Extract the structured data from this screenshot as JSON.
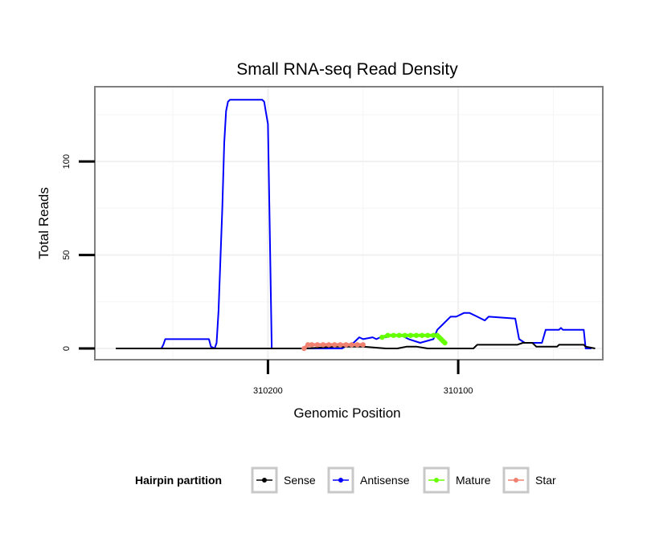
{
  "chart_data": {
    "type": "line",
    "title": "Small RNA-seq Read Density",
    "xlabel": "Genomic Position",
    "ylabel": "Total Reads",
    "x_reversed": true,
    "xlim": [
      310291,
      310024
    ],
    "ylim": [
      -6,
      140
    ],
    "x_ticks": [
      310200,
      310100
    ],
    "x_tick_labels": [
      "310200",
      "310100"
    ],
    "y_ticks": [
      0,
      50,
      100
    ],
    "y_tick_labels": [
      "0",
      "50",
      "100"
    ],
    "grid": true,
    "legend": {
      "title": "Hairpin partition",
      "position": "bottom",
      "entries": [
        {
          "label": "Sense",
          "color": "#000000"
        },
        {
          "label": "Antisense",
          "color": "#0000ff"
        },
        {
          "label": "Mature",
          "color": "#66ff00"
        },
        {
          "label": "Star",
          "color": "#f08070"
        }
      ]
    },
    "series": [
      {
        "name": "Sense",
        "color": "#000000",
        "marker": "line",
        "x": [
          310280,
          310180,
          310165,
          310150,
          310138,
          310132,
          310127,
          310122,
          310116,
          310110,
          310104,
          310097,
          310092,
          310090,
          310069,
          310066,
          310061,
          310059,
          310048,
          310047,
          310034,
          310033,
          310028
        ],
        "y": [
          0,
          0,
          1,
          1,
          0,
          0,
          1,
          1,
          0,
          0,
          0,
          0,
          0,
          2,
          2,
          3,
          3,
          1,
          1,
          2,
          2,
          1,
          0
        ]
      },
      {
        "name": "Antisense",
        "color": "#0000ff",
        "marker": "line",
        "x": [
          310280,
          310256,
          310255,
          310254,
          310231,
          310230,
          310228,
          310227,
          310226,
          310224,
          310223,
          310222,
          310221,
          310220,
          310203,
          310202,
          310201,
          310200,
          310199,
          310198,
          310161,
          310158,
          310155,
          310152,
          310150,
          310145,
          310143,
          310141,
          310138,
          310136,
          310130,
          310126,
          310120,
          310113,
          310111,
          310109,
          310104,
          310101,
          310097,
          310094,
          310090,
          310086,
          310084,
          310070,
          310068,
          310065,
          310056,
          310054,
          310047,
          310046,
          310045,
          310034,
          310033,
          310030
        ],
        "y": [
          0,
          0,
          2,
          5,
          5,
          1,
          0,
          3,
          20,
          75,
          110,
          127,
          132,
          133,
          133,
          132,
          126,
          120,
          60,
          0,
          0,
          2,
          3,
          6,
          5,
          6,
          5,
          6,
          6,
          7,
          7,
          5,
          3,
          5,
          10,
          12,
          17,
          17,
          19,
          19,
          17,
          15,
          17,
          16,
          5,
          3,
          3,
          10,
          10,
          11,
          10,
          10,
          0,
          0
        ]
      },
      {
        "name": "Mature",
        "color": "#66ff00",
        "marker": "dots",
        "x": [
          310140,
          310137,
          310134,
          310131,
          310128,
          310125,
          310122,
          310119,
          310116,
          310113,
          310111,
          310110,
          310109,
          310108,
          310107
        ],
        "y": [
          6,
          7,
          7,
          7,
          7,
          7,
          7,
          7,
          7,
          7,
          7,
          6,
          5,
          4,
          3
        ]
      },
      {
        "name": "Star",
        "color": "#f08070",
        "marker": "dots",
        "x": [
          310181,
          310179,
          310177,
          310174,
          310171,
          310168,
          310165,
          310162,
          310159,
          310156,
          310153,
          310150
        ],
        "y": [
          0,
          2,
          2,
          2,
          2,
          2,
          2,
          2,
          2,
          2,
          2,
          2
        ]
      }
    ]
  }
}
